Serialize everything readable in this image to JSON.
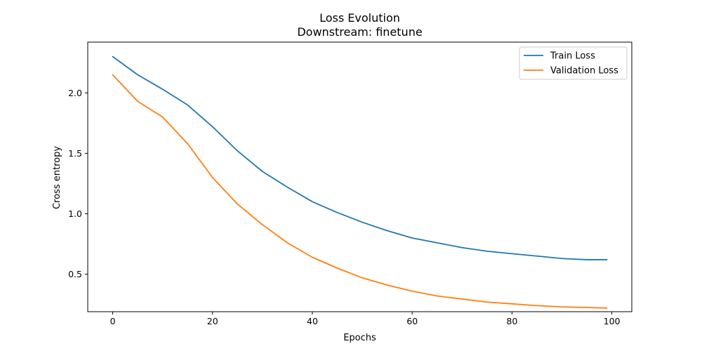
{
  "chart_data": {
    "type": "line",
    "title": "Loss Evolution",
    "subtitle": "Downstream: finetune",
    "xlabel": "Epochs",
    "ylabel": "Cross entropy",
    "xlim": [
      -5,
      104
    ],
    "ylim": [
      0.19,
      2.42
    ],
    "xticks": [
      0,
      20,
      40,
      60,
      80,
      100
    ],
    "yticks": [
      0.5,
      1.0,
      1.5,
      2.0
    ],
    "xtick_labels": [
      "0",
      "20",
      "40",
      "60",
      "80",
      "100"
    ],
    "ytick_labels": [
      "0.5",
      "1.0",
      "1.5",
      "2.0"
    ],
    "grid": false,
    "legend_position": "top-right",
    "series": [
      {
        "name": "Train Loss",
        "color": "#1f77b4",
        "x": [
          0,
          5,
          10,
          15,
          20,
          25,
          30,
          35,
          40,
          45,
          50,
          55,
          60,
          65,
          70,
          75,
          80,
          85,
          90,
          95,
          99
        ],
        "y": [
          2.3,
          2.15,
          2.03,
          1.9,
          1.72,
          1.52,
          1.35,
          1.22,
          1.1,
          1.01,
          0.93,
          0.86,
          0.8,
          0.76,
          0.72,
          0.69,
          0.67,
          0.65,
          0.63,
          0.62,
          0.62
        ]
      },
      {
        "name": "Validation Loss",
        "color": "#ff7f0e",
        "x": [
          0,
          5,
          10,
          15,
          20,
          25,
          30,
          35,
          40,
          45,
          50,
          55,
          60,
          65,
          70,
          75,
          80,
          85,
          90,
          95,
          99
        ],
        "y": [
          2.15,
          1.93,
          1.8,
          1.58,
          1.3,
          1.08,
          0.91,
          0.76,
          0.64,
          0.55,
          0.47,
          0.41,
          0.36,
          0.32,
          0.295,
          0.27,
          0.255,
          0.24,
          0.23,
          0.225,
          0.22
        ]
      }
    ]
  }
}
